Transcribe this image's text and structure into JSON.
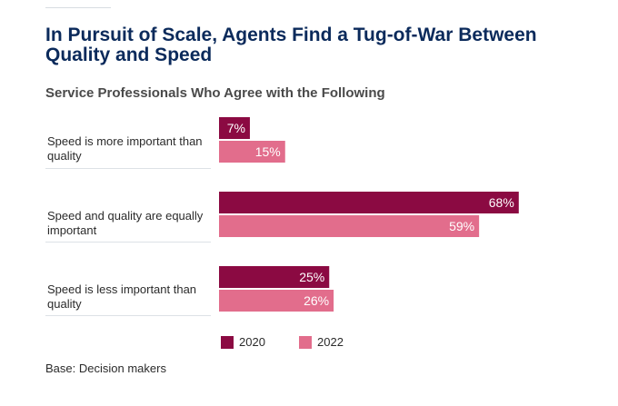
{
  "header": {
    "title": "In Pursuit of Scale, Agents Find a Tug-of-War Between Quality and Speed",
    "subtitle": "Service Professionals Who Agree with the Following"
  },
  "footer": {
    "base_note": "Base: Decision makers"
  },
  "colors": {
    "2020": "#8b0a42",
    "2022": "#e26d8c"
  },
  "chart_data": {
    "type": "bar",
    "orientation": "horizontal",
    "title": "Service Professionals Who Agree with the Following",
    "categories": [
      "Speed is more important than quality",
      "Speed and quality are equally important",
      "Speed is less important than quality"
    ],
    "series": [
      {
        "name": "2020",
        "values": [
          7,
          68,
          25
        ],
        "labels": [
          "7%",
          "68%",
          "25%"
        ],
        "color": "#8b0a42"
      },
      {
        "name": "2022",
        "values": [
          15,
          59,
          26
        ],
        "labels": [
          "15%",
          "59%",
          "26%"
        ],
        "color": "#e26d8c"
      }
    ],
    "xlim": [
      0,
      100
    ],
    "grid": false,
    "legend": "bottom"
  }
}
